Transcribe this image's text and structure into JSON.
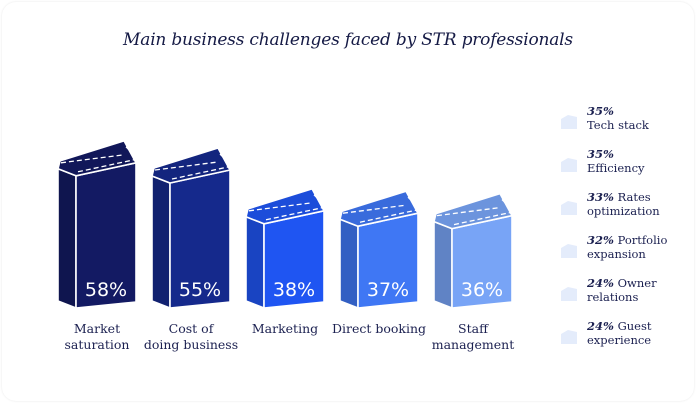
{
  "title": "Main business challenges faced by STR professionals",
  "chart_data": {
    "type": "bar",
    "title": "Main business challenges faced by STR professionals",
    "categories": [
      "Market saturation",
      "Cost of doing business",
      "Marketing",
      "Direct booking",
      "Staff management"
    ],
    "category_lines": [
      [
        "Market",
        "saturation"
      ],
      [
        "Cost of",
        "doing business"
      ],
      [
        "Marketing"
      ],
      [
        "Direct booking"
      ],
      [
        "Staff",
        "management"
      ]
    ],
    "values": [
      58,
      55,
      38,
      37,
      36
    ],
    "value_labels": [
      "58%",
      "55%",
      "38%",
      "37%",
      "36%"
    ],
    "colors": [
      "#131a63",
      "#15298c",
      "#1f55f2",
      "#3f77f4",
      "#78a4f6"
    ],
    "xlabel": "",
    "ylabel": "",
    "grid": false
  },
  "legend": [
    {
      "pct": "35%",
      "text": "Tech stack"
    },
    {
      "pct": "35%",
      "text": "Efficiency"
    },
    {
      "pct": "33%",
      "text": "Rates optimization"
    },
    {
      "pct": "32%",
      "text": "Portfolio expansion"
    },
    {
      "pct": "24%",
      "text": "Owner relations"
    },
    {
      "pct": "24%",
      "text": "Guest experience"
    }
  ],
  "legend_icon_color": "#e4ecfb"
}
